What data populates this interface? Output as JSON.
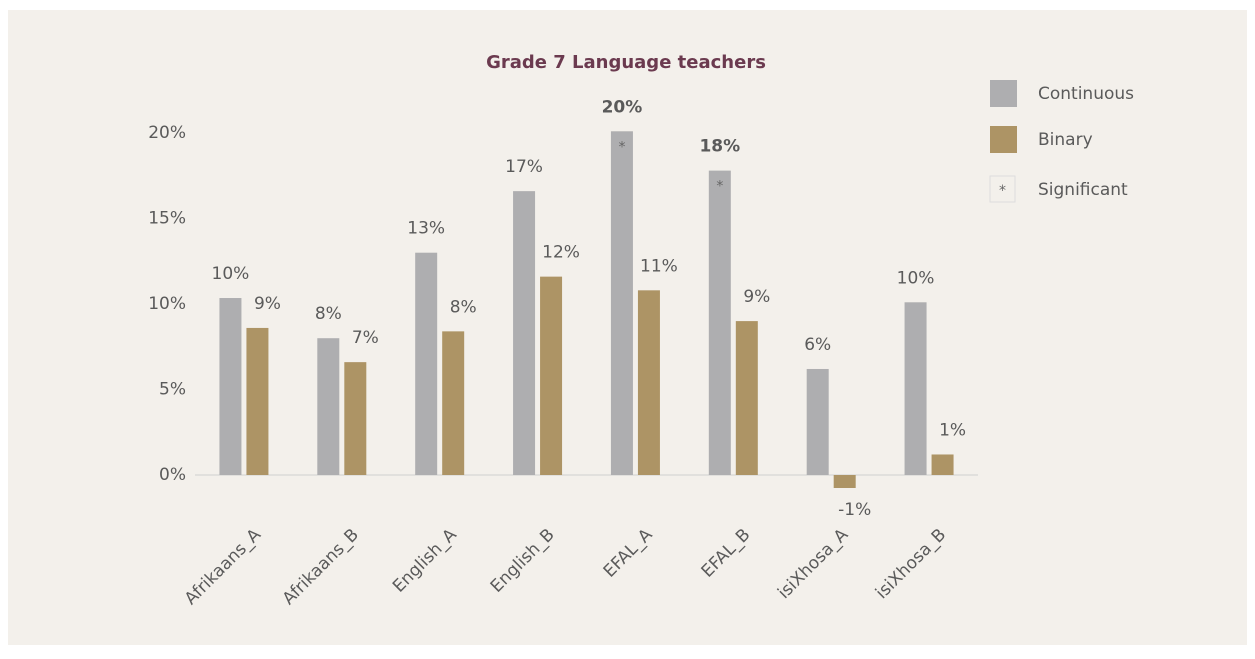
{
  "chart_data": {
    "type": "bar",
    "title": "Grade 7 Language teachers",
    "categories": [
      "Afrikaans_A",
      "Afrikaans_B",
      "English_A",
      "English_B",
      "EFAL_A",
      "EFAL_B",
      "isiXhosa_A",
      "isiXhosa_B"
    ],
    "series": [
      {
        "name": "Continuous",
        "color": "#aeaeb0",
        "values": [
          10.35,
          8.0,
          13.0,
          16.6,
          20.1,
          17.8,
          6.2,
          10.1
        ],
        "value_labels": [
          "10%",
          "8%",
          "13%",
          "17%",
          "20%",
          "18%",
          "6%",
          "10%"
        ],
        "significant": [
          false,
          false,
          false,
          false,
          true,
          true,
          false,
          false
        ]
      },
      {
        "name": "Binary",
        "color": "#ad9465",
        "values": [
          8.6,
          6.6,
          8.4,
          11.6,
          10.8,
          9.0,
          -0.76,
          1.2
        ],
        "value_labels": [
          "9%",
          "7%",
          "8%",
          "12%",
          "11%",
          "9%",
          "-1%",
          "1%"
        ],
        "significant": [
          false,
          false,
          false,
          false,
          false,
          false,
          false,
          false
        ]
      }
    ],
    "significant_marker": "*",
    "significant_label": "Significant",
    "ylim": [
      -2,
      21
    ],
    "yticks": [
      {
        "value": 0,
        "label": "0%"
      },
      {
        "value": 5,
        "label": "5%"
      },
      {
        "value": 10,
        "label": "10%"
      },
      {
        "value": 15,
        "label": "15%"
      },
      {
        "value": 20,
        "label": "20%"
      }
    ],
    "legend": "right"
  }
}
